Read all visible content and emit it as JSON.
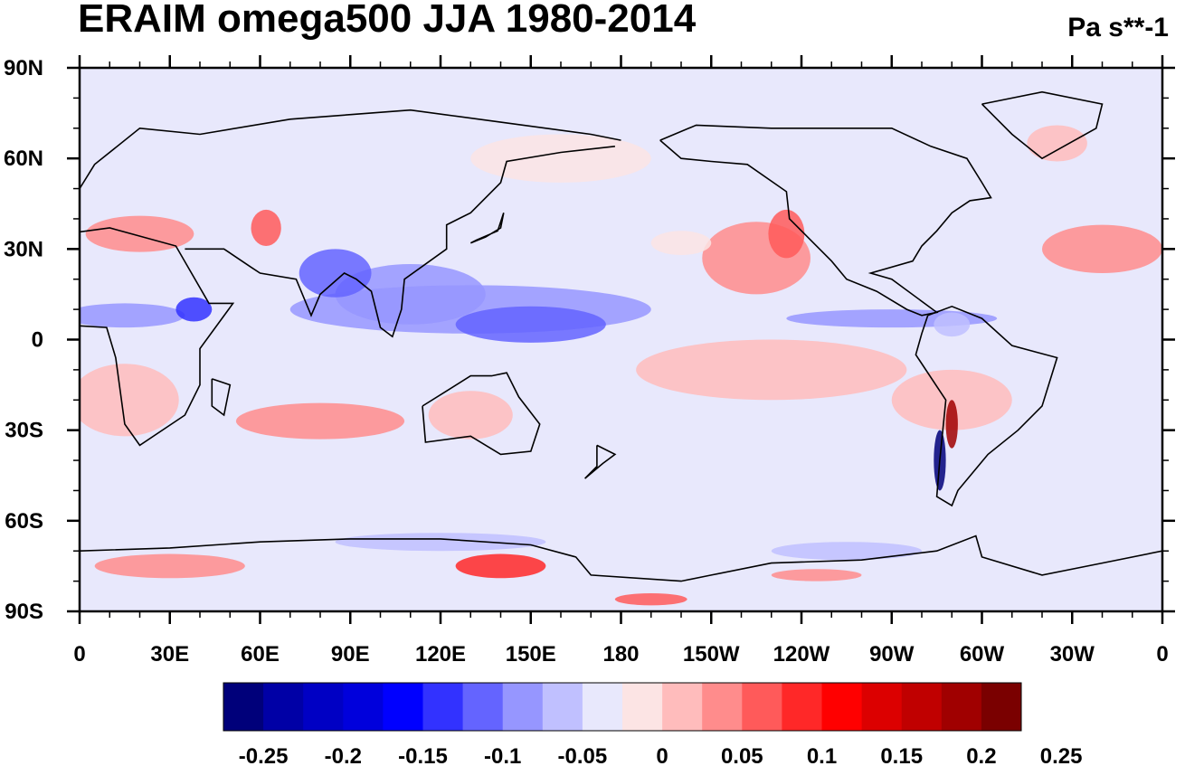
{
  "title": "ERAIM omega500 JJA 1980-2014",
  "units": "Pa s**-1",
  "map": {
    "projection": "cylindrical-equidistant",
    "lon_range": [
      0,
      360
    ],
    "lat_range": [
      -90,
      90
    ],
    "x_ticks": [
      "0",
      "30E",
      "60E",
      "90E",
      "120E",
      "150E",
      "180",
      "150W",
      "120W",
      "90W",
      "60W",
      "30W",
      "0"
    ],
    "y_ticks": [
      "90N",
      "60N",
      "30N",
      "0",
      "30S",
      "60S",
      "90S"
    ],
    "background_color": "#e8e8fc"
  },
  "colorbar": {
    "labels": [
      "-0.25",
      "-0.2",
      "-0.15",
      "-0.1",
      "-0.05",
      "0",
      "0.05",
      "0.1",
      "0.15",
      "0.2",
      "0.25"
    ],
    "colors": [
      "#00007a",
      "#0000a6",
      "#0000c4",
      "#0000dc",
      "#0000ff",
      "#3232ff",
      "#6464ff",
      "#9696ff",
      "#c0c0ff",
      "#e8e8fc",
      "#fce4e4",
      "#ffbcbc",
      "#ff8c8c",
      "#ff5a5a",
      "#ff2828",
      "#ff0000",
      "#dc0000",
      "#c00000",
      "#a00000",
      "#7a0000"
    ]
  },
  "field_regions": [
    {
      "lon": 130,
      "lat": 10,
      "rx": 60,
      "ry": 8,
      "value": -0.06
    },
    {
      "lon": 110,
      "lat": 15,
      "rx": 25,
      "ry": 10,
      "value": -0.07
    },
    {
      "lon": 85,
      "lat": 22,
      "rx": 12,
      "ry": 8,
      "value": -0.08
    },
    {
      "lon": 15,
      "lat": 8,
      "rx": 20,
      "ry": 4,
      "value": -0.06
    },
    {
      "lon": 38,
      "lat": 10,
      "rx": 6,
      "ry": 4,
      "value": -0.1
    },
    {
      "lon": 270,
      "lat": 7,
      "rx": 35,
      "ry": 3,
      "value": -0.07
    },
    {
      "lon": 290,
      "lat": 5,
      "rx": 6,
      "ry": 4,
      "value": -0.05
    },
    {
      "lon": 150,
      "lat": 5,
      "rx": 25,
      "ry": 6,
      "value": -0.08
    },
    {
      "lon": 225,
      "lat": 27,
      "rx": 18,
      "ry": 12,
      "value": 0.07
    },
    {
      "lon": 235,
      "lat": 35,
      "rx": 6,
      "ry": 8,
      "value": 0.09
    },
    {
      "lon": 340,
      "lat": 30,
      "rx": 20,
      "ry": 8,
      "value": 0.06
    },
    {
      "lon": 20,
      "lat": 35,
      "rx": 18,
      "ry": 6,
      "value": 0.07
    },
    {
      "lon": 62,
      "lat": 37,
      "rx": 5,
      "ry": 6,
      "value": 0.1
    },
    {
      "lon": 15,
      "lat": -20,
      "rx": 18,
      "ry": 12,
      "value": 0.05
    },
    {
      "lon": 80,
      "lat": -27,
      "rx": 28,
      "ry": 6,
      "value": 0.07
    },
    {
      "lon": 130,
      "lat": -25,
      "rx": 14,
      "ry": 8,
      "value": 0.04
    },
    {
      "lon": 230,
      "lat": -10,
      "rx": 45,
      "ry": 10,
      "value": 0.04
    },
    {
      "lon": 290,
      "lat": -20,
      "rx": 20,
      "ry": 10,
      "value": 0.04
    },
    {
      "lon": 290,
      "lat": -28,
      "rx": 2,
      "ry": 8,
      "value": 0.2
    },
    {
      "lon": 286,
      "lat": -40,
      "rx": 2,
      "ry": 10,
      "value": -0.25
    },
    {
      "lon": 140,
      "lat": -75,
      "rx": 15,
      "ry": 4,
      "value": 0.12
    },
    {
      "lon": 30,
      "lat": -75,
      "rx": 25,
      "ry": 4,
      "value": 0.06
    },
    {
      "lon": 245,
      "lat": -78,
      "rx": 15,
      "ry": 2,
      "value": 0.06
    },
    {
      "lon": 190,
      "lat": -86,
      "rx": 12,
      "ry": 2,
      "value": 0.08
    },
    {
      "lon": 120,
      "lat": -67,
      "rx": 35,
      "ry": 3,
      "value": -0.04
    },
    {
      "lon": 255,
      "lat": -70,
      "rx": 25,
      "ry": 3,
      "value": -0.04
    },
    {
      "lon": 325,
      "lat": 65,
      "rx": 10,
      "ry": 6,
      "value": 0.05
    },
    {
      "lon": 160,
      "lat": 60,
      "rx": 30,
      "ry": 8,
      "value": 0.02
    },
    {
      "lon": 200,
      "lat": 32,
      "rx": 10,
      "ry": 4,
      "value": 0.02
    }
  ]
}
